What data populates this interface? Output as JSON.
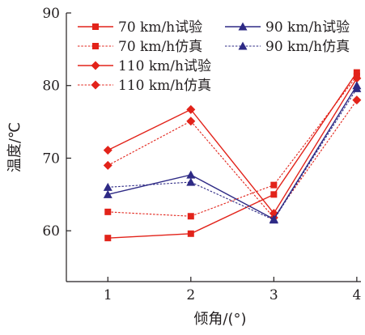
{
  "chart_data": {
    "type": "line",
    "title": "",
    "xlabel": "倾角/(°)",
    "ylabel": "温度/℃",
    "x": [
      1,
      2,
      3,
      4
    ],
    "xlim": [
      0.5,
      4.05
    ],
    "ylim": [
      53,
      90
    ],
    "xticks": [
      "1",
      "2",
      "3",
      "4"
    ],
    "yticks": [
      "60",
      "70",
      "80",
      "90"
    ],
    "grid": false,
    "legend_position": "top",
    "series": [
      {
        "name": "70 km/h试验",
        "values": [
          59.0,
          59.6,
          65.0,
          81.8
        ],
        "color": "#e2231a",
        "marker": "square",
        "dashed": false
      },
      {
        "name": "70 km/h仿真",
        "values": [
          62.6,
          62.0,
          66.3,
          81.3
        ],
        "color": "#e2231a",
        "marker": "square",
        "dashed": true
      },
      {
        "name": "110 km/h试验",
        "values": [
          71.1,
          76.7,
          62.4,
          81.0
        ],
        "color": "#e2231a",
        "marker": "diamond",
        "dashed": false
      },
      {
        "name": "110 km/h仿真",
        "values": [
          69.0,
          75.1,
          61.8,
          78.0
        ],
        "color": "#e2231a",
        "marker": "diamond",
        "dashed": true
      },
      {
        "name": "90 km/h试验",
        "values": [
          65.0,
          67.7,
          61.6,
          80.0
        ],
        "color": "#2e2a85",
        "marker": "triangle",
        "dashed": false
      },
      {
        "name": "90 km/h仿真",
        "values": [
          66.0,
          66.7,
          61.5,
          79.6
        ],
        "color": "#2e2a85",
        "marker": "triangle",
        "dashed": true
      }
    ]
  }
}
